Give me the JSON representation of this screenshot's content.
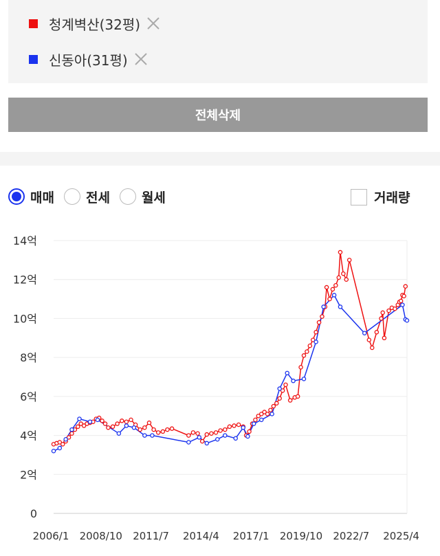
{
  "compare_list": [
    {
      "label": "청계벽산(32평)",
      "color": "#ee1111",
      "remove_icon": "close-icon"
    },
    {
      "label": "신동아(31평)",
      "color": "#1a33ee",
      "remove_icon": "close-icon"
    }
  ],
  "delete_all_label": "전체삭제",
  "trade_options": [
    {
      "label": "매매",
      "selected": true
    },
    {
      "label": "전세",
      "selected": false
    },
    {
      "label": "월세",
      "selected": false
    }
  ],
  "volume_label": "거래량",
  "volume_checked": false,
  "chart_data": {
    "type": "line",
    "ylim": [
      0,
      14
    ],
    "yticks": [
      0,
      2,
      4,
      6,
      8,
      10,
      12,
      14
    ],
    "ytick_labels": [
      "0",
      "2억",
      "4억",
      "6억",
      "8억",
      "10억",
      "12억",
      "14억"
    ],
    "xlim": [
      "2006-01",
      "2025-06"
    ],
    "xticks": [
      "2006-01",
      "2008-10",
      "2011-07",
      "2014-04",
      "2017-01",
      "2019-10",
      "2022-07",
      "2025-04"
    ],
    "xtick_labels": [
      "2006/1",
      "2008/10",
      "2011/7",
      "2014/4",
      "2017/1",
      "2019/10",
      "2022/7",
      "2025/4"
    ],
    "grid": true,
    "series": [
      {
        "name": "청계벽산(32평)",
        "color": "#ee1111",
        "points": [
          [
            "2006-01",
            3.55
          ],
          [
            "2006-03",
            3.6
          ],
          [
            "2006-05",
            3.65
          ],
          [
            "2006-07",
            3.55
          ],
          [
            "2006-09",
            3.7
          ],
          [
            "2006-11",
            3.9
          ],
          [
            "2007-01",
            4.1
          ],
          [
            "2007-03",
            4.3
          ],
          [
            "2007-05",
            4.45
          ],
          [
            "2007-07",
            4.6
          ],
          [
            "2007-09",
            4.5
          ],
          [
            "2007-11",
            4.6
          ],
          [
            "2008-01",
            4.65
          ],
          [
            "2008-03",
            4.7
          ],
          [
            "2008-05",
            4.85
          ],
          [
            "2008-07",
            4.9
          ],
          [
            "2008-09",
            4.75
          ],
          [
            "2008-11",
            4.6
          ],
          [
            "2009-01",
            4.4
          ],
          [
            "2009-04",
            4.45
          ],
          [
            "2009-07",
            4.6
          ],
          [
            "2009-10",
            4.75
          ],
          [
            "2010-01",
            4.7
          ],
          [
            "2010-04",
            4.8
          ],
          [
            "2010-07",
            4.55
          ],
          [
            "2010-10",
            4.3
          ],
          [
            "2011-01",
            4.4
          ],
          [
            "2011-04",
            4.65
          ],
          [
            "2011-07",
            4.3
          ],
          [
            "2011-10",
            4.15
          ],
          [
            "2012-01",
            4.2
          ],
          [
            "2012-04",
            4.3
          ],
          [
            "2012-07",
            4.35
          ],
          [
            "2013-06",
            4.0
          ],
          [
            "2013-09",
            4.15
          ],
          [
            "2013-12",
            4.1
          ],
          [
            "2014-03",
            3.7
          ],
          [
            "2014-06",
            4.05
          ],
          [
            "2014-09",
            4.1
          ],
          [
            "2014-12",
            4.15
          ],
          [
            "2015-03",
            4.25
          ],
          [
            "2015-06",
            4.3
          ],
          [
            "2015-09",
            4.45
          ],
          [
            "2015-12",
            4.5
          ],
          [
            "2016-03",
            4.55
          ],
          [
            "2016-06",
            4.45
          ],
          [
            "2016-08",
            4.0
          ],
          [
            "2016-10",
            4.2
          ],
          [
            "2016-12",
            4.6
          ],
          [
            "2017-02",
            4.8
          ],
          [
            "2017-04",
            5.0
          ],
          [
            "2017-06",
            5.1
          ],
          [
            "2017-08",
            5.2
          ],
          [
            "2017-10",
            5.1
          ],
          [
            "2017-12",
            5.3
          ],
          [
            "2018-02",
            5.5
          ],
          [
            "2018-04",
            5.65
          ],
          [
            "2018-06",
            5.9
          ],
          [
            "2018-08",
            6.3
          ],
          [
            "2018-10",
            6.6
          ],
          [
            "2019-01",
            5.8
          ],
          [
            "2019-04",
            5.95
          ],
          [
            "2019-06",
            6.0
          ],
          [
            "2019-08",
            7.5
          ],
          [
            "2019-10",
            8.1
          ],
          [
            "2019-12",
            8.3
          ],
          [
            "2020-02",
            8.6
          ],
          [
            "2020-04",
            8.9
          ],
          [
            "2020-06",
            9.3
          ],
          [
            "2020-08",
            9.8
          ],
          [
            "2020-10",
            10.1
          ],
          [
            "2020-12",
            10.6
          ],
          [
            "2021-01",
            11.6
          ],
          [
            "2021-03",
            11.0
          ],
          [
            "2021-05",
            11.5
          ],
          [
            "2021-07",
            11.7
          ],
          [
            "2021-09",
            12.1
          ],
          [
            "2021-10",
            13.4
          ],
          [
            "2021-12",
            12.3
          ],
          [
            "2022-02",
            12.0
          ],
          [
            "2022-04",
            13.0
          ],
          [
            "2023-05",
            8.9
          ],
          [
            "2023-07",
            8.5
          ],
          [
            "2023-10",
            9.3
          ],
          [
            "2024-01",
            10.0
          ],
          [
            "2024-02",
            10.3
          ],
          [
            "2024-03",
            9.0
          ],
          [
            "2024-06",
            10.4
          ],
          [
            "2024-08",
            10.55
          ],
          [
            "2024-10",
            10.5
          ],
          [
            "2024-12",
            10.7
          ],
          [
            "2025-01",
            10.85
          ],
          [
            "2025-02",
            10.9
          ],
          [
            "2025-03",
            11.2
          ],
          [
            "2025-04",
            11.15
          ],
          [
            "2025-05",
            11.65
          ]
        ]
      },
      {
        "name": "신동아(31평)",
        "color": "#1a33ee",
        "points": [
          [
            "2006-01",
            3.2
          ],
          [
            "2006-05",
            3.35
          ],
          [
            "2006-09",
            3.8
          ],
          [
            "2007-01",
            4.3
          ],
          [
            "2007-06",
            4.85
          ],
          [
            "2008-01",
            4.7
          ],
          [
            "2008-06",
            4.8
          ],
          [
            "2009-08",
            4.1
          ],
          [
            "2010-01",
            4.5
          ],
          [
            "2010-06",
            4.4
          ],
          [
            "2011-01",
            4.0
          ],
          [
            "2011-06",
            4.0
          ],
          [
            "2013-06",
            3.65
          ],
          [
            "2014-01",
            3.9
          ],
          [
            "2014-06",
            3.6
          ],
          [
            "2015-01",
            3.8
          ],
          [
            "2015-06",
            4.0
          ],
          [
            "2016-01",
            3.85
          ],
          [
            "2016-06",
            4.4
          ],
          [
            "2016-09",
            3.95
          ],
          [
            "2017-01",
            4.6
          ],
          [
            "2017-06",
            4.8
          ],
          [
            "2018-01",
            5.1
          ],
          [
            "2018-06",
            6.4
          ],
          [
            "2018-11",
            7.2
          ],
          [
            "2019-03",
            6.8
          ],
          [
            "2019-10",
            6.9
          ],
          [
            "2020-06",
            8.8
          ],
          [
            "2020-11",
            10.6
          ],
          [
            "2021-06",
            11.2
          ],
          [
            "2021-10",
            10.6
          ],
          [
            "2023-02",
            9.25
          ],
          [
            "2025-03",
            10.7
          ],
          [
            "2025-05",
            9.95
          ],
          [
            "2025-06",
            9.9
          ]
        ]
      }
    ]
  }
}
